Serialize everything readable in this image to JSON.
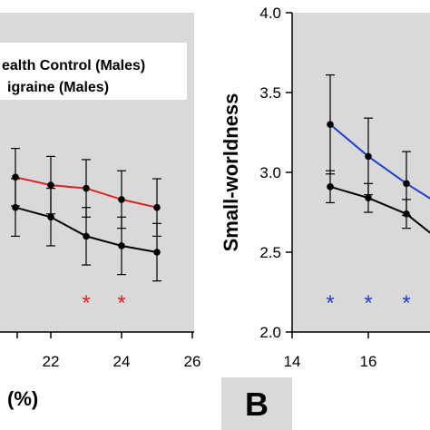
{
  "chart_data": [
    {
      "type": "line",
      "panel": "A",
      "xlabel": "(%)",
      "ylabel": "",
      "xlim": [
        21,
        26
      ],
      "ylim": [
        2.0,
        4.0
      ],
      "x_ticks": [
        "22",
        "24",
        "26"
      ],
      "x_tick_values": [
        22,
        24,
        26
      ],
      "grid": false,
      "background": "#d9d9d9",
      "legend": {
        "placement": "top-left",
        "entries": [
          "ealth Control (Males)",
          "igraine (Males)"
        ]
      },
      "series": [
        {
          "name": "Migraine (Males)",
          "color": "#e02020",
          "x": [
            21,
            22,
            23,
            24,
            25
          ],
          "y": [
            2.97,
            2.92,
            2.9,
            2.83,
            2.78
          ],
          "err": [
            0.18,
            0.18,
            0.18,
            0.18,
            0.18
          ]
        },
        {
          "name": "Health Control (Males)",
          "color": "#000000",
          "x": [
            21,
            22,
            23,
            24,
            25
          ],
          "y": [
            2.78,
            2.72,
            2.6,
            2.54,
            2.5
          ],
          "err": [
            0.18,
            0.18,
            0.18,
            0.18,
            0.18
          ]
        }
      ],
      "annotations": [
        {
          "text": "*",
          "x": 23,
          "color": "#e02020"
        },
        {
          "text": "*",
          "x": 24,
          "color": "#e02020"
        }
      ],
      "panel_label": ""
    },
    {
      "type": "line",
      "panel": "B",
      "xlabel": "",
      "ylabel": "Small-worldness",
      "xlim": [
        14,
        18
      ],
      "ylim": [
        2.0,
        4.0
      ],
      "x_ticks": [
        "14",
        "16"
      ],
      "x_tick_values": [
        14,
        16
      ],
      "y_ticks": [
        "2.0",
        "2.5",
        "3.0",
        "3.5",
        "4.0"
      ],
      "y_tick_values": [
        2.0,
        2.5,
        3.0,
        3.5,
        4.0
      ],
      "grid": false,
      "background": "#d9d9d9",
      "series": [
        {
          "name": "",
          "color": "#1f3fc8",
          "x": [
            15,
            16,
            17,
            18
          ],
          "y": [
            3.3,
            3.1,
            2.93,
            2.78
          ],
          "err": [
            0.31,
            0.24,
            0.2,
            0.2
          ]
        },
        {
          "name": "",
          "color": "#000000",
          "x": [
            15,
            16,
            17,
            18
          ],
          "y": [
            2.91,
            2.84,
            2.74,
            2.55
          ],
          "err": [
            0.1,
            0.09,
            0.09,
            0.1
          ]
        }
      ],
      "annotations": [
        {
          "text": "*",
          "x": 15,
          "color": "#1f3fc8"
        },
        {
          "text": "*",
          "x": 16,
          "color": "#1f3fc8"
        },
        {
          "text": "*",
          "x": 17,
          "color": "#1f3fc8"
        }
      ],
      "panel_label": "B"
    }
  ]
}
